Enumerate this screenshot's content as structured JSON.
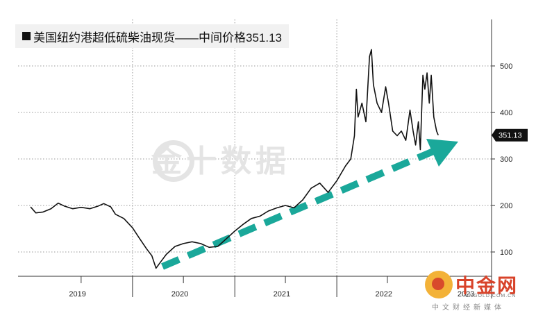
{
  "title": "美国纽约港超低硫柴油现货——中间价格351.13",
  "watermark": "金十数据",
  "logo": {
    "name": "中金网",
    "url": "CNGOLD.COM.CN",
    "tagline": "中文财经新媒体"
  },
  "colors": {
    "line": "#111111",
    "arrow": "#1aa89a",
    "grid": "#9a9a9a"
  },
  "chart_data": {
    "type": "line",
    "ylim": [
      50,
      560
    ],
    "y_ticks": [
      100,
      200,
      300,
      400,
      500
    ],
    "x_labels": [
      "2019",
      "2020",
      "2021",
      "2022",
      "2023"
    ],
    "last_value": 351.13,
    "last_label": "351.13",
    "annotation": "rising trend arrow",
    "series": [
      {
        "points": [
          [
            "2019-01-01",
            197
          ],
          [
            "2019-01-20",
            184
          ],
          [
            "2019-02-15",
            186
          ],
          [
            "2019-03-15",
            193
          ],
          [
            "2019-04-10",
            205
          ],
          [
            "2019-05-01",
            199
          ],
          [
            "2019-06-01",
            193
          ],
          [
            "2019-07-01",
            196
          ],
          [
            "2019-08-01",
            193
          ],
          [
            "2019-09-01",
            199
          ],
          [
            "2019-09-20",
            204
          ],
          [
            "2019-10-15",
            197
          ],
          [
            "2019-11-01",
            181
          ],
          [
            "2019-12-01",
            172
          ],
          [
            "2020-01-01",
            152
          ],
          [
            "2020-01-25",
            130
          ],
          [
            "2020-02-20",
            107
          ],
          [
            "2020-03-10",
            92
          ],
          [
            "2020-03-25",
            65
          ],
          [
            "2020-04-10",
            78
          ],
          [
            "2020-05-01",
            95
          ],
          [
            "2020-06-01",
            112
          ],
          [
            "2020-07-01",
            118
          ],
          [
            "2020-08-01",
            122
          ],
          [
            "2020-09-01",
            118
          ],
          [
            "2020-10-01",
            110
          ],
          [
            "2020-11-01",
            112
          ],
          [
            "2020-12-01",
            128
          ],
          [
            "2021-01-01",
            145
          ],
          [
            "2021-02-01",
            160
          ],
          [
            "2021-03-01",
            172
          ],
          [
            "2021-04-01",
            177
          ],
          [
            "2021-05-01",
            188
          ],
          [
            "2021-06-01",
            195
          ],
          [
            "2021-07-01",
            200
          ],
          [
            "2021-08-01",
            195
          ],
          [
            "2021-09-01",
            212
          ],
          [
            "2021-10-01",
            237
          ],
          [
            "2021-11-01",
            248
          ],
          [
            "2021-12-01",
            228
          ],
          [
            "2022-01-01",
            253
          ],
          [
            "2022-02-01",
            285
          ],
          [
            "2022-02-20",
            300
          ],
          [
            "2022-03-05",
            350
          ],
          [
            "2022-03-12",
            450
          ],
          [
            "2022-03-18",
            390
          ],
          [
            "2022-04-01",
            420
          ],
          [
            "2022-04-15",
            380
          ],
          [
            "2022-04-28",
            520
          ],
          [
            "2022-05-05",
            535
          ],
          [
            "2022-05-12",
            460
          ],
          [
            "2022-05-25",
            420
          ],
          [
            "2022-06-10",
            400
          ],
          [
            "2022-06-25",
            455
          ],
          [
            "2022-07-05",
            420
          ],
          [
            "2022-07-20",
            360
          ],
          [
            "2022-08-05",
            350
          ],
          [
            "2022-08-20",
            360
          ],
          [
            "2022-09-05",
            340
          ],
          [
            "2022-09-20",
            405
          ],
          [
            "2022-10-01",
            360
          ],
          [
            "2022-10-10",
            330
          ],
          [
            "2022-10-20",
            380
          ],
          [
            "2022-10-27",
            320
          ],
          [
            "2022-11-05",
            480
          ],
          [
            "2022-11-12",
            450
          ],
          [
            "2022-11-20",
            485
          ],
          [
            "2022-11-28",
            420
          ],
          [
            "2022-12-05",
            480
          ],
          [
            "2022-12-14",
            390
          ],
          [
            "2022-12-24",
            360
          ],
          [
            "2022-12-30",
            351.13
          ]
        ]
      }
    ]
  }
}
